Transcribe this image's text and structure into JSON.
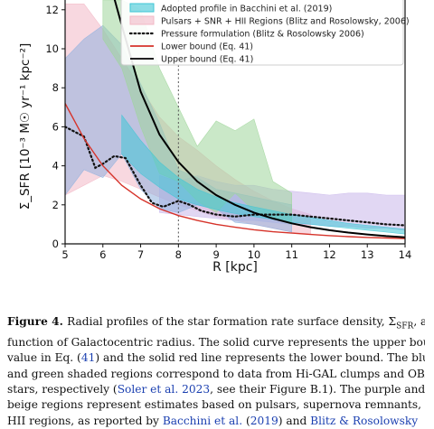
{
  "figure": {
    "chart_data": {
      "type": "area",
      "xlabel": "R [kpc]",
      "ylabel": "Σ_SFR [10⁻³ M☉ yr⁻¹ kpc⁻²]",
      "xlim": [
        5,
        14
      ],
      "ylim": [
        0,
        12.5
      ],
      "xticks": [
        "5",
        "6",
        "7",
        "8",
        "9",
        "10",
        "11",
        "12",
        "13",
        "14"
      ],
      "yticks": [
        "0",
        "2",
        "4",
        "6",
        "8",
        "10",
        "12"
      ],
      "vline_x": 8,
      "legend": {
        "placement": "top-right",
        "entries": [
          {
            "label": "Adopted profile in Bacchini et al. (2019)",
            "style": "band",
            "color": "#3fc6d6"
          },
          {
            "label": "Pulsars + SNR + HII Regions (Blitz and Rosolowsky, 2006)",
            "style": "band",
            "color": "#f2b8c6"
          },
          {
            "label": "Pressure formulation (Blitz & Rosolowsky 2006)",
            "style": "dotted",
            "color": "#111111"
          },
          {
            "label": "Lower bound (Eq. 41)",
            "style": "line",
            "color": "#d6332a"
          },
          {
            "label": "Upper bound (Eq. 41)",
            "style": "line",
            "color": "#000000"
          }
        ]
      },
      "series": [
        {
          "name": "Adopted profile in Bacchini et al. (2019)",
          "kind": "band",
          "color": "#3fc6d6",
          "x": [
            6.5,
            7,
            7.5,
            8,
            8.5,
            9,
            9.5,
            10,
            10.5,
            11,
            11.5,
            12,
            12.5,
            13,
            13.5,
            14
          ],
          "lower": [
            4.6,
            3.6,
            2.9,
            2.3,
            2.0,
            1.75,
            1.55,
            1.4,
            1.25,
            1.1,
            1.0,
            0.9,
            0.8,
            0.7,
            0.6,
            0.5
          ],
          "upper": [
            6.6,
            5.3,
            4.2,
            3.4,
            2.8,
            2.4,
            2.1,
            1.9,
            1.7,
            1.5,
            1.35,
            1.2,
            1.05,
            0.95,
            0.85,
            0.75
          ]
        },
        {
          "name": "Pulsars + SNR + HII Regions (Blitz and Rosolowsky, 2006)",
          "kind": "band",
          "color": "#f2b8c6",
          "x": [
            5,
            5.5,
            6,
            6.5,
            7,
            7.5,
            8,
            8.5,
            9,
            9.5,
            10,
            10.5,
            11,
            11.5
          ],
          "lower": [
            2.5,
            3.0,
            3.5,
            3.2,
            2.8,
            2.4,
            2.0,
            1.7,
            1.4,
            1.2,
            1.0,
            0.8,
            0.6,
            0.5
          ],
          "upper": [
            12.3,
            12.3,
            11.0,
            9.5,
            8.0,
            6.5,
            5.5,
            4.8,
            4.0,
            3.3,
            2.7,
            2.2,
            1.8,
            1.5
          ]
        },
        {
          "name": "Hi-GAL clumps",
          "kind": "band",
          "color": "#8fb1df",
          "x": [
            5,
            5.5,
            6,
            6.5,
            7,
            7.5,
            8,
            8.5,
            9,
            9.5,
            10,
            10.5,
            11
          ],
          "lower": [
            2.5,
            3.8,
            3.4,
            4.6,
            2.8,
            1.8,
            1.6,
            2.0,
            1.8,
            1.1,
            1.0,
            0.8,
            0.6
          ],
          "upper": [
            9.5,
            10.5,
            11.2,
            10.2,
            8.2,
            6.2,
            3.8,
            3.4,
            2.8,
            2.6,
            2.4,
            2.2,
            2.0
          ]
        },
        {
          "name": "OBA stars",
          "kind": "band",
          "color": "#9fd69a",
          "x": [
            6,
            6.5,
            7,
            7.5,
            8,
            8.5,
            9,
            9.5,
            10,
            10.5,
            11
          ],
          "lower": [
            10.5,
            9.0,
            6.0,
            3.6,
            3.2,
            2.2,
            1.6,
            2.6,
            1.7,
            1.3,
            1.0
          ],
          "upper": [
            12.5,
            12.5,
            12.0,
            9.0,
            7.0,
            5.0,
            6.3,
            5.8,
            6.4,
            3.2,
            2.6
          ]
        },
        {
          "name": "Purple region",
          "kind": "band",
          "color": "#c9b6ea",
          "x": [
            7.5,
            8,
            8.5,
            9,
            9.5,
            10,
            10.5,
            11,
            11.5,
            12,
            12.5,
            13,
            13.5,
            14
          ],
          "lower": [
            1.6,
            1.5,
            1.4,
            1.3,
            1.2,
            1.2,
            1.1,
            1.0,
            1.0,
            0.9,
            0.9,
            0.8,
            0.8,
            0.7
          ],
          "upper": [
            3.5,
            3.2,
            3.5,
            3.2,
            3.0,
            3.0,
            2.8,
            2.7,
            2.6,
            2.5,
            2.6,
            2.6,
            2.5,
            2.5
          ]
        },
        {
          "name": "Pressure formulation (Blitz & Rosolowsky 2006)",
          "kind": "dotted",
          "color": "#111111",
          "x": [
            5,
            5.5,
            5.8,
            6,
            6.3,
            6.6,
            7.0,
            7.3,
            7.6,
            8.0,
            8.3,
            8.6,
            9.0,
            9.5,
            10,
            10.5,
            11,
            11.5,
            12,
            12.5,
            13,
            13.5,
            14
          ],
          "y": [
            6.0,
            5.5,
            3.9,
            4.1,
            4.5,
            4.4,
            3.0,
            2.1,
            1.9,
            2.2,
            2.0,
            1.7,
            1.5,
            1.4,
            1.5,
            1.5,
            1.5,
            1.4,
            1.3,
            1.2,
            1.1,
            1.0,
            0.95
          ]
        },
        {
          "name": "Lower bound (Eq. 41)",
          "kind": "line",
          "color": "#d6332a",
          "x": [
            5,
            5.5,
            6,
            6.5,
            7,
            7.5,
            8,
            8.5,
            9,
            9.5,
            10,
            10.5,
            11,
            11.5,
            12,
            12.5,
            13,
            13.5,
            14
          ],
          "y": [
            7.2,
            5.4,
            4.0,
            3.0,
            2.3,
            1.8,
            1.45,
            1.2,
            1.0,
            0.85,
            0.72,
            0.62,
            0.55,
            0.48,
            0.42,
            0.37,
            0.33,
            0.3,
            0.27
          ]
        },
        {
          "name": "Upper bound (Eq. 41)",
          "kind": "line",
          "color": "#000000",
          "x": [
            6.3,
            6.5,
            7,
            7.5,
            8,
            8.5,
            9,
            9.5,
            10,
            10.5,
            11,
            11.5,
            12,
            12.5,
            13,
            13.5,
            14
          ],
          "y": [
            12.6,
            11.2,
            7.8,
            5.6,
            4.2,
            3.2,
            2.5,
            2.0,
            1.6,
            1.3,
            1.05,
            0.85,
            0.7,
            0.58,
            0.48,
            0.4,
            0.34
          ]
        }
      ]
    }
  },
  "caption": {
    "label": "Figure 4.",
    "lines": [
      [
        {
          "t": "Radial profiles of the star formation rate surface density, Σ"
        },
        {
          "t": "SFR",
          "sub": true
        },
        {
          "t": ", as a"
        }
      ],
      [
        {
          "t": "function of Galactocentric radius. The solid curve represents the upper bound"
        }
      ],
      [
        {
          "t": "value in Eq. ("
        },
        {
          "t": "41",
          "ref": true
        },
        {
          "t": ") and the solid red line represents the lower bound. The blue"
        }
      ],
      [
        {
          "t": "and green shaded regions correspond to data from Hi-GAL clumps and OBA"
        }
      ],
      [
        {
          "t": "stars, respectively ("
        },
        {
          "t": "Soler et al. 2023",
          "ref": true
        },
        {
          "t": ", see their Figure B.1). The purple and"
        }
      ],
      [
        {
          "t": "beige regions represent estimates based on pulsars, supernova remnants, and"
        }
      ],
      [
        {
          "t": "HII regions, as reported by "
        },
        {
          "t": "Bacchini et al.",
          "ref": true
        },
        {
          "t": " ("
        },
        {
          "t": "2019",
          "ref": true
        },
        {
          "t": ") and "
        },
        {
          "t": "Blitz & Rosolowsky",
          "ref": true
        }
      ]
    ]
  }
}
